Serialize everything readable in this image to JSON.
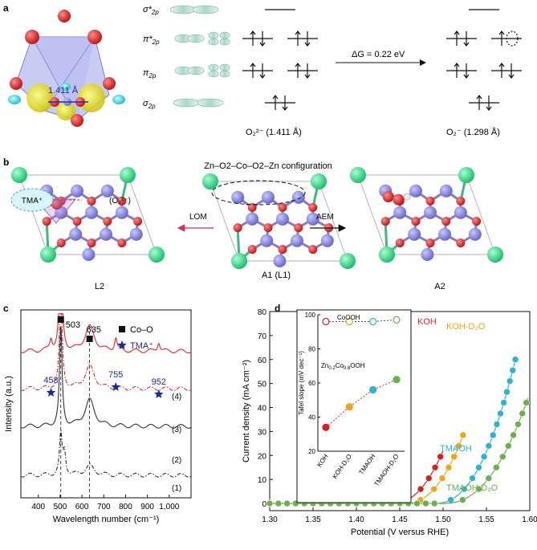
{
  "panels": {
    "a": "a",
    "b": "b",
    "c": "c",
    "d": "d"
  },
  "panel_a": {
    "bond_length_label": "1.411 Å",
    "orbital_labels": [
      "σ*2p",
      "π*2p",
      "π2p",
      "σ2p"
    ],
    "species_left": "O₂²⁻ (1.411 Å)",
    "species_right": "O₂⁻ (1.298 Å)",
    "delta_g": "ΔG = 0.22 eV"
  },
  "panel_b": {
    "config_title": "Zn–O2–Co–O2–Zn configuration",
    "tma_label": "TMA⁺",
    "o2_label": "(O₂²⁻)",
    "lom_label": "LOM",
    "aem_label": "AEM",
    "structures": [
      "L2",
      "A1 (L1)",
      "A2"
    ]
  },
  "colors": {
    "red": "#d42020",
    "orange": "#f0a418",
    "cyan": "#2ab3d3",
    "green": "#6ab04c",
    "black": "#333333",
    "blue": "#1a2aa0"
  },
  "chart_data": [
    {
      "type": "line",
      "panel": "c",
      "xlabel": "Wavelength number (cm⁻¹)",
      "ylabel": "Intensity (a.u.)",
      "xlim": [
        320,
        1100
      ],
      "xticks": [
        400,
        500,
        600,
        700,
        800,
        900,
        1000
      ],
      "xtick_labels": [
        "400",
        "500",
        "600",
        "700",
        "800",
        "900",
        "1,000"
      ],
      "legend": [
        {
          "symbol": "square",
          "label": "Co–O"
        },
        {
          "symbol": "star",
          "label": "TMA⁺"
        }
      ],
      "peaks_co_o": [
        503,
        635
      ],
      "peaks_tma": [
        458,
        755,
        952
      ],
      "series": [
        {
          "name": "(4)",
          "offset": 0.78,
          "peaks": [
            [
              458,
              0.06
            ],
            [
              503,
              0.62
            ],
            [
              635,
              0.13
            ],
            [
              755,
              0.07
            ],
            [
              952,
              0.05
            ]
          ]
        },
        {
          "name": "(3)",
          "offset": 0.58,
          "peaks": [
            [
              503,
              0.56
            ],
            [
              635,
              0.12
            ]
          ]
        },
        {
          "name": "(2)",
          "offset": 0.38,
          "peaks": [
            [
              503,
              0.52
            ],
            [
              635,
              0.14
            ]
          ]
        },
        {
          "name": "(1)",
          "offset": 0.12,
          "peaks": [
            [
              503,
              0.21
            ],
            [
              520,
              0.12
            ],
            [
              635,
              0.05
            ]
          ]
        }
      ]
    },
    {
      "type": "scatter",
      "panel": "d",
      "xlabel": "Potential (V versus RHE)",
      "ylabel": "Current density (mA cm⁻²)",
      "xlim": [
        1.3,
        1.6
      ],
      "ylim": [
        -3,
        80
      ],
      "xticks": [
        "1.30",
        "1.35",
        "1.40",
        "1.45",
        "1.50",
        "1.55",
        "1.60"
      ],
      "yticks": [
        0,
        10,
        20,
        30,
        40,
        50,
        60,
        70,
        80
      ],
      "series": [
        {
          "name": "KOH",
          "v0": 1.44,
          "k": 14200,
          "n": 2.3,
          "xmax": 1.502
        },
        {
          "name": "KOH-D₂O",
          "v0": 1.455,
          "k": 13800,
          "n": 2.3,
          "xmax": 1.525
        },
        {
          "name": "TMAOH",
          "v0": 1.49,
          "k": 14000,
          "n": 2.3,
          "xmax": 1.585
        },
        {
          "name": "TMAOH-D₂O",
          "v0": 1.5,
          "k": 9200,
          "n": 2.3,
          "xmax": 1.6
        }
      ],
      "inset": {
        "ylabel": "Tafel slope (mV dec⁻¹)",
        "ylim": [
          20,
          100
        ],
        "yticks": [
          20,
          40,
          60,
          80,
          100
        ],
        "categories": [
          "KOH",
          "KOH-D₂O",
          "TMAOH",
          "TMAOH-D₂O"
        ],
        "groups": [
          {
            "name": "CoOOH",
            "values": [
              96,
              96,
              96,
              97
            ]
          },
          {
            "name": "Zn0.2Co0.8OOH",
            "values": [
              34,
              46,
              56,
              62
            ]
          }
        ]
      }
    }
  ]
}
